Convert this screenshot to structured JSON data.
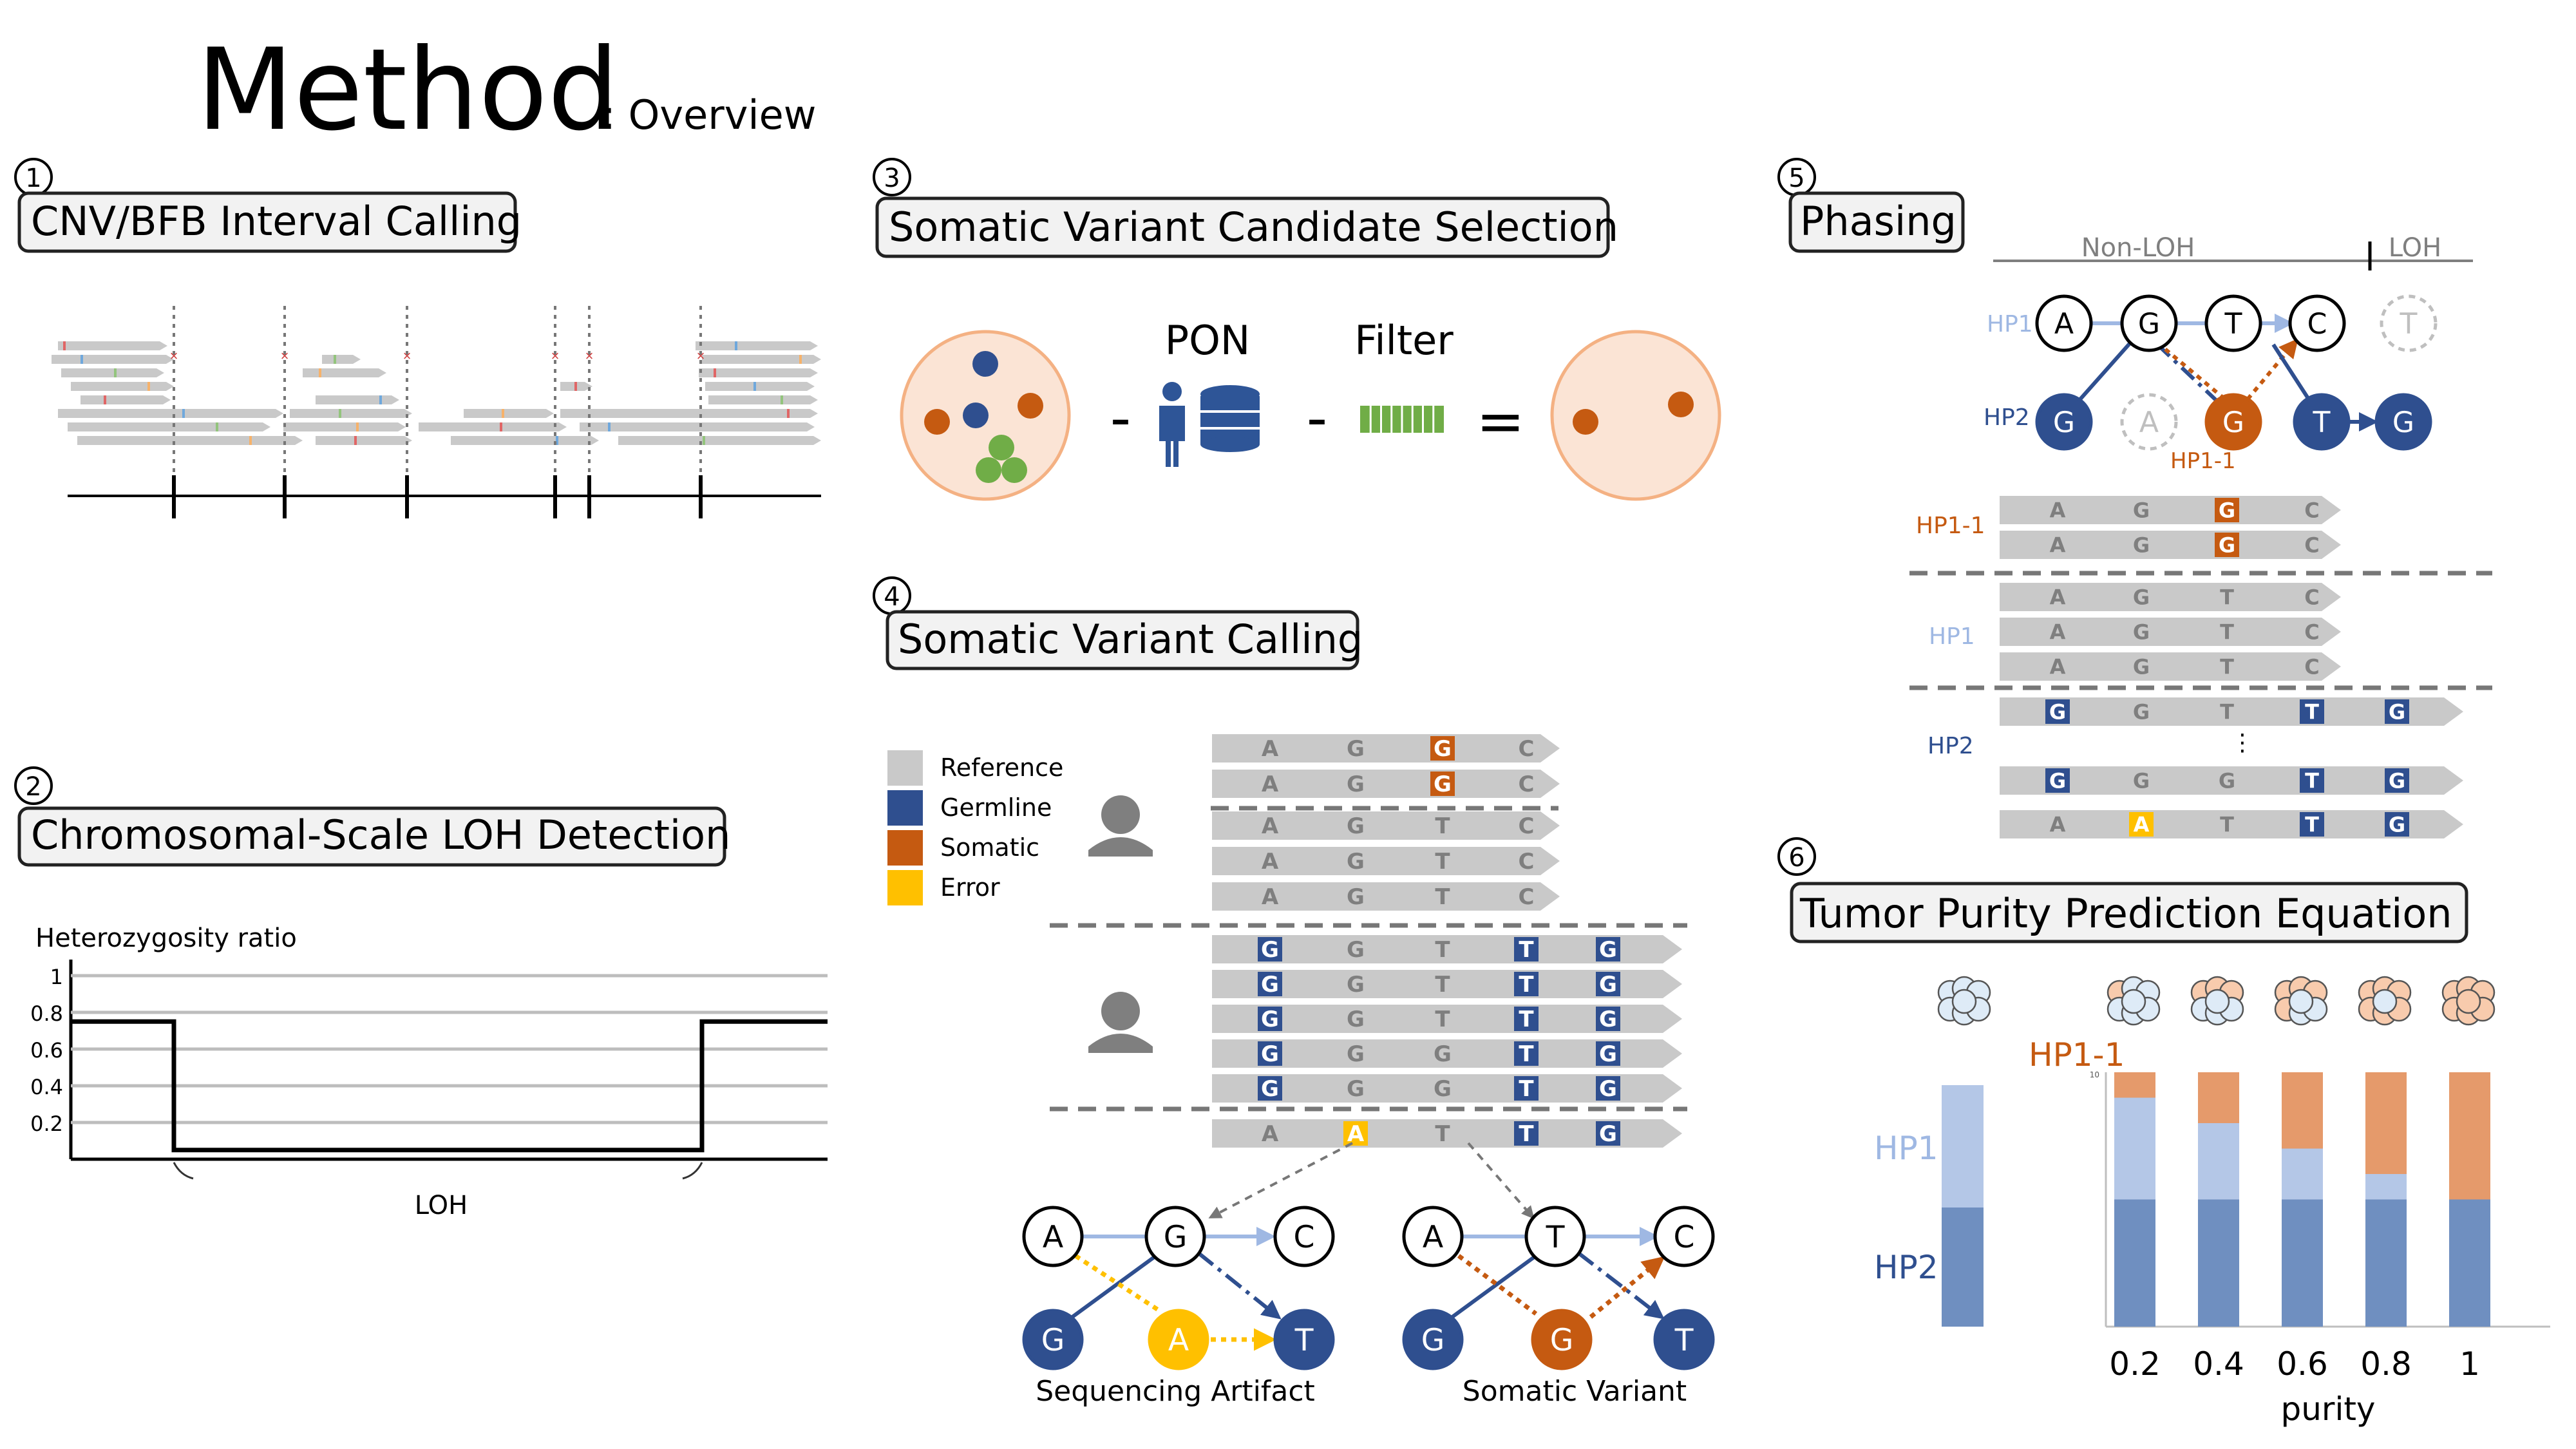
{
  "title": {
    "main": "Method",
    "sub": ": Overview"
  },
  "colors": {
    "germline": "#2f4f8f",
    "somatic": "#c55a11",
    "error": "#ffc000",
    "reference": "#c9c9c9",
    "hp1_light": "#9fb8e3",
    "hp2_dark": "#2f4f8f",
    "pon_blue": "#2e5597",
    "filter_green": "#70ad47",
    "cell_fill": "#fbe4d5",
    "cell_stroke": "#f4b183"
  },
  "panels": [
    {
      "num": "1",
      "label": "CNV/BFB Interval Calling"
    },
    {
      "num": "2",
      "label": "Chromosomal-Scale LOH Detection"
    },
    {
      "num": "3",
      "label": "Somatic Variant Candidate Selection"
    },
    {
      "num": "4",
      "label": "Somatic Variant Calling"
    },
    {
      "num": "5",
      "label": "Phasing"
    },
    {
      "num": "6",
      "label": "Tumor Purity Prediction Equation"
    }
  ],
  "loh": {
    "ylabel": "Heterozygosity ratio",
    "yticks": [
      "1",
      "0.8",
      "0.6",
      "0.4",
      "0.2"
    ],
    "region_label": "LOH",
    "chart_data": {
      "type": "line",
      "title": "",
      "ylabel": "Heterozygosity ratio",
      "ylim": [
        0,
        1
      ],
      "segments": [
        {
          "region": "left",
          "value": 0.75
        },
        {
          "region": "LOH",
          "value": 0.05
        },
        {
          "region": "right",
          "value": 0.75
        }
      ]
    }
  },
  "selection": {
    "minus1": "-",
    "pon": "PON",
    "minus2": "-",
    "filter": "Filter",
    "equals": "="
  },
  "legend": [
    "Reference",
    "Germline",
    "Somatic",
    "Error"
  ],
  "calling": {
    "graph1_label": "Sequencing Artifact",
    "graph2_label": "Somatic Variant",
    "graph1_nodes": [
      "A",
      "G",
      "C",
      "G",
      "A",
      "T"
    ],
    "graph2_nodes": [
      "A",
      "T",
      "C",
      "G",
      "G",
      "T"
    ],
    "reads_a": [
      [
        "A",
        "G",
        "G",
        "C"
      ],
      [
        "A",
        "G",
        "G",
        "C"
      ],
      [
        "A",
        "G",
        "T",
        "C"
      ],
      [
        "A",
        "G",
        "T",
        "C"
      ],
      [
        "A",
        "G",
        "T",
        "C"
      ]
    ],
    "reads_b": [
      [
        "G",
        "G",
        "T",
        "T",
        "G"
      ],
      [
        "G",
        "G",
        "T",
        "T",
        "G"
      ],
      [
        "G",
        "G",
        "T",
        "T",
        "G"
      ],
      [
        "G",
        "G",
        "G",
        "T",
        "G"
      ],
      [
        "G",
        "G",
        "G",
        "T",
        "G"
      ]
    ],
    "read_c": [
      "A",
      "A",
      "T",
      "T",
      "G"
    ]
  },
  "phasing": {
    "nonloh": "Non-LOH",
    "loh": "LOH",
    "hp1": "HP1",
    "hp2": "HP2",
    "hp11": "HP1-1",
    "hp1_nodes": [
      "A",
      "G",
      "T",
      "C",
      "T"
    ],
    "hp2_nodes": [
      "G",
      "A",
      "G",
      "T",
      "G"
    ],
    "reads_hp11": [
      [
        "A",
        "G",
        "G",
        "C"
      ],
      [
        "A",
        "G",
        "G",
        "C"
      ]
    ],
    "reads_hp1": [
      [
        "A",
        "G",
        "T",
        "C"
      ],
      [
        "A",
        "G",
        "T",
        "C"
      ],
      [
        "A",
        "G",
        "T",
        "C"
      ]
    ],
    "reads_hp2": [
      [
        "G",
        "G",
        "T",
        "T",
        "G"
      ],
      [
        "G",
        "G",
        "G",
        "T",
        "G"
      ],
      [
        "A",
        "A",
        "T",
        "T",
        "G"
      ]
    ],
    "ellipsis": "⋮"
  },
  "purity": {
    "hp11": "HP1-1",
    "hp1": "HP1",
    "hp2": "HP2",
    "xlabel": "purity",
    "chart_data": {
      "type": "bar",
      "stacked": true,
      "xlabel": "purity",
      "categories": [
        "0.2",
        "0.4",
        "0.6",
        "0.8",
        "1"
      ],
      "ylim": [
        0,
        10
      ],
      "series": [
        {
          "name": "HP2",
          "values": [
            5,
            5,
            5,
            5,
            5
          ]
        },
        {
          "name": "HP1",
          "values": [
            4,
            3,
            2,
            1,
            0
          ]
        },
        {
          "name": "HP1-1",
          "values": [
            1,
            2,
            3,
            4,
            5
          ]
        }
      ],
      "reference_bar": {
        "HP2": 5,
        "HP1": 5
      }
    }
  }
}
